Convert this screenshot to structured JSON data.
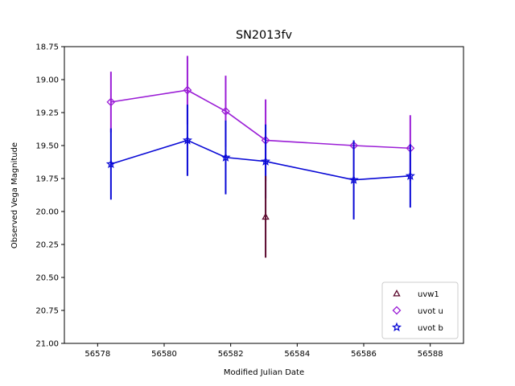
{
  "chart_data": {
    "type": "scatter",
    "title": "SN2013fv",
    "xlabel": "Modified Julian Date",
    "ylabel": "Observed Vega Magnitude",
    "xlim": [
      56577.0,
      56589.0
    ],
    "ylim": [
      21.0,
      18.75
    ],
    "y_inverted": true,
    "grid": false,
    "legend_position": "lower right",
    "x_ticks": [
      "56578",
      "56580",
      "56582",
      "56584",
      "56586",
      "56588"
    ],
    "y_ticks": [
      "18.75",
      "19.00",
      "19.25",
      "19.50",
      "19.75",
      "20.00",
      "20.25",
      "20.50",
      "20.75",
      "21.00"
    ],
    "series": [
      {
        "name": "uvw1",
        "color": "#5c0a2e",
        "marker": "triangle",
        "line": false,
        "points": [
          {
            "x": 56583.05,
            "y": 20.04,
            "err": 0.31
          }
        ]
      },
      {
        "name": "uvot u",
        "color": "#9b1ed6",
        "marker": "diamond",
        "line": true,
        "points": [
          {
            "x": 56578.4,
            "y": 19.17,
            "err": 0.23
          },
          {
            "x": 56580.7,
            "y": 19.08,
            "err": 0.26
          },
          {
            "x": 56581.85,
            "y": 19.24,
            "err": 0.27
          },
          {
            "x": 56583.05,
            "y": 19.46,
            "err": 0.31
          },
          {
            "x": 56585.7,
            "y": 19.5,
            "err": 0.0
          },
          {
            "x": 56587.4,
            "y": 19.52,
            "err": 0.25
          }
        ]
      },
      {
        "name": "uvot b",
        "color": "#0a0ad6",
        "marker": "star",
        "line": true,
        "points": [
          {
            "x": 56578.4,
            "y": 19.64,
            "err": 0.27
          },
          {
            "x": 56580.7,
            "y": 19.46,
            "err": 0.27
          },
          {
            "x": 56581.85,
            "y": 19.59,
            "err": 0.28
          },
          {
            "x": 56583.05,
            "y": 19.62,
            "err": 0.28
          },
          {
            "x": 56585.7,
            "y": 19.76,
            "err": 0.3
          },
          {
            "x": 56587.4,
            "y": 19.73,
            "err": 0.24
          }
        ]
      }
    ]
  }
}
